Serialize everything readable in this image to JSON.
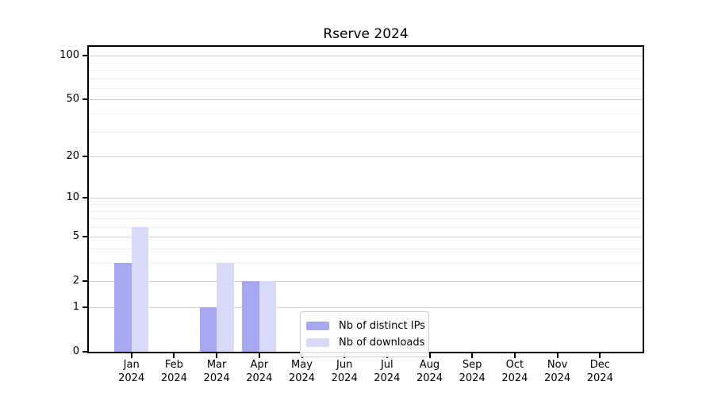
{
  "chart_data": {
    "type": "bar",
    "title": "Rserve 2024",
    "categories": [
      "Jan",
      "Feb",
      "Mar",
      "Apr",
      "May",
      "Jun",
      "Jul",
      "Aug",
      "Sep",
      "Oct",
      "Nov",
      "Dec"
    ],
    "category_year": "2024",
    "series": [
      {
        "name": "Nb of distinct IPs",
        "color": "#a8a8f2",
        "values": [
          3,
          0,
          1,
          2,
          0,
          0,
          0,
          0,
          0,
          0,
          0,
          0
        ]
      },
      {
        "name": "Nb of downloads",
        "color": "#d9d9f8",
        "values": [
          6,
          0,
          3,
          2,
          0,
          0,
          0,
          0,
          0,
          0,
          0,
          0
        ]
      }
    ],
    "yticks": [
      0,
      1,
      2,
      5,
      10,
      20,
      50,
      100
    ],
    "minor_gridlines": [
      3,
      4,
      6,
      7,
      8,
      9,
      30,
      40,
      60,
      70,
      80,
      90
    ],
    "scale": "log1p",
    "ylim": [
      0,
      100
    ],
    "grid": "horizontal",
    "legend_position": "bottom-center"
  }
}
